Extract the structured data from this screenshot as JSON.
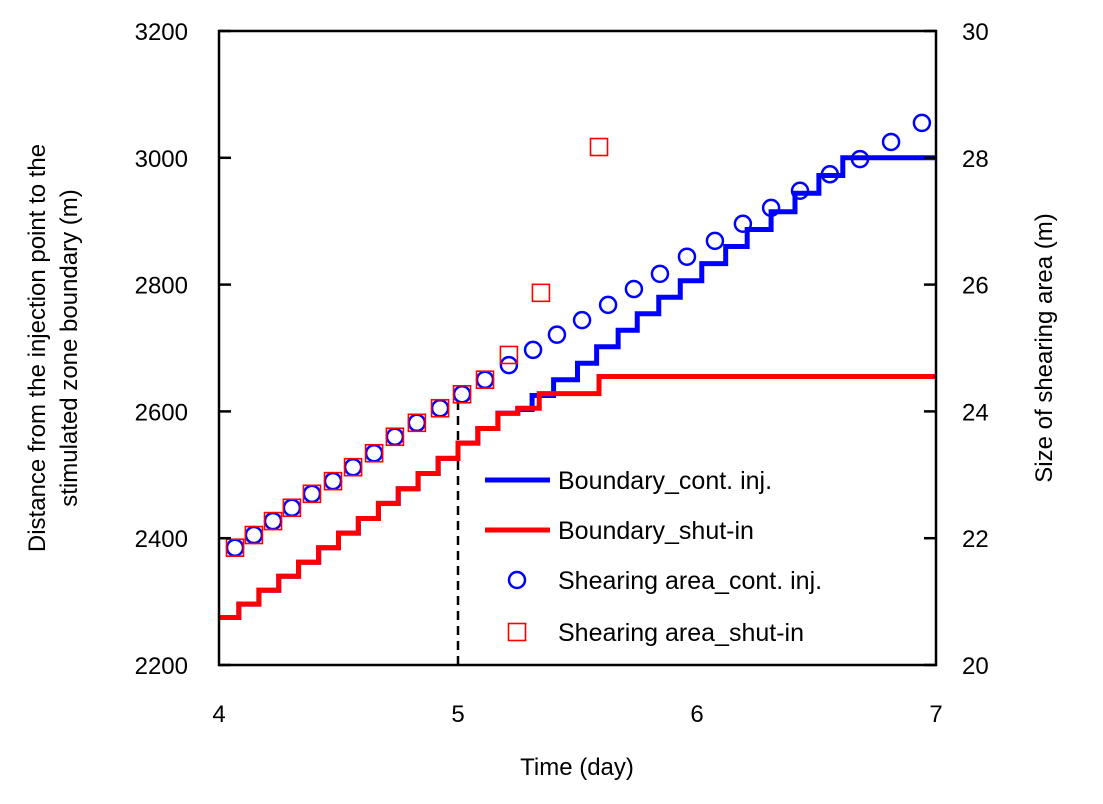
{
  "chart_data": {
    "type": "line",
    "xlabel": "Time (day)",
    "ylabel_left_line1": "Distance from the injection point to the",
    "ylabel_left_line2": "stimulated zone boundary (m)",
    "ylabel_right": "Size of shearing area (m)",
    "xlim": [
      4,
      7
    ],
    "ylim_left": [
      2200,
      3200
    ],
    "ylim_right": [
      20,
      30
    ],
    "xticks": [
      "4",
      "5",
      "6",
      "7"
    ],
    "yticks_left": [
      "2200",
      "2400",
      "2600",
      "2800",
      "3000",
      "3200"
    ],
    "yticks_right": [
      "20",
      "22",
      "24",
      "26",
      "28",
      "30"
    ],
    "grid": false,
    "legend_position": "bottom-right",
    "shut_in_time": 5.0,
    "shut_in_marker_top": 2626,
    "series": [
      {
        "name": "Boundary_cont. inj.",
        "kind": "step",
        "axis": "left",
        "color": "#0000ff",
        "step_times": [
          4.0,
          4.083,
          4.167,
          4.25,
          4.333,
          4.417,
          4.5,
          4.583,
          4.667,
          4.75,
          4.833,
          4.917,
          5.0,
          5.083,
          5.167,
          5.25,
          5.31,
          5.4,
          5.5,
          5.58,
          5.67,
          5.75,
          5.84,
          5.93,
          6.02,
          6.12,
          6.21,
          6.31,
          6.41,
          6.51,
          6.61,
          6.71,
          6.82,
          6.92
        ],
        "step_values": [
          2275,
          2296,
          2318,
          2340,
          2362,
          2385,
          2408,
          2431,
          2455,
          2478,
          2502,
          2526,
          2550,
          2573,
          2597,
          2603,
          2625,
          2650,
          2676,
          2702,
          2728,
          2754,
          2780,
          2806,
          2833,
          2860,
          2887,
          2915,
          2944,
          2972,
          3000,
          3000,
          3000,
          3000
        ],
        "x_end": 7.0
      },
      {
        "name": "Boundary_shut-in",
        "kind": "step",
        "axis": "left",
        "color": "#ff0000",
        "step_times": [
          4.0,
          4.083,
          4.167,
          4.25,
          4.333,
          4.417,
          4.5,
          4.583,
          4.667,
          4.75,
          4.833,
          4.917,
          5.0,
          5.083,
          5.167,
          5.25,
          5.34,
          5.59
        ],
        "step_values": [
          2275,
          2296,
          2318,
          2340,
          2362,
          2385,
          2408,
          2431,
          2455,
          2478,
          2502,
          2526,
          2550,
          2573,
          2597,
          2605,
          2628,
          2655
        ],
        "x_end": 7.0
      },
      {
        "name": "Shearing area_cont. inj.",
        "kind": "scatter",
        "marker": "circle",
        "axis": "right",
        "color": "#0000ff",
        "x": [
          4.067,
          4.146,
          4.226,
          4.305,
          4.389,
          4.477,
          4.561,
          4.649,
          4.736,
          4.828,
          4.925,
          5.017,
          5.113,
          5.213,
          5.314,
          5.414,
          5.519,
          5.628,
          5.736,
          5.845,
          5.958,
          6.075,
          6.192,
          6.31,
          6.431,
          6.556,
          6.682,
          6.812,
          6.941
        ],
        "y": [
          21.85,
          22.05,
          22.27,
          22.48,
          22.7,
          22.9,
          23.12,
          23.34,
          23.6,
          23.82,
          24.05,
          24.27,
          24.5,
          24.73,
          24.97,
          25.21,
          25.44,
          25.68,
          25.93,
          26.17,
          26.44,
          26.69,
          26.96,
          27.21,
          27.48,
          27.74,
          27.98,
          28.25,
          28.55
        ]
      },
      {
        "name": "Shearing area_shut-in",
        "kind": "scatter",
        "marker": "square",
        "axis": "right",
        "color": "#ff0000",
        "x": [
          4.067,
          4.146,
          4.226,
          4.305,
          4.389,
          4.477,
          4.561,
          4.649,
          4.736,
          4.828,
          4.925,
          5.017,
          5.113,
          5.213,
          5.347,
          5.59
        ],
        "y": [
          21.85,
          22.05,
          22.27,
          22.48,
          22.7,
          22.9,
          23.12,
          23.34,
          23.6,
          23.82,
          24.05,
          24.27,
          24.5,
          24.89,
          25.87,
          28.17
        ]
      }
    ]
  }
}
